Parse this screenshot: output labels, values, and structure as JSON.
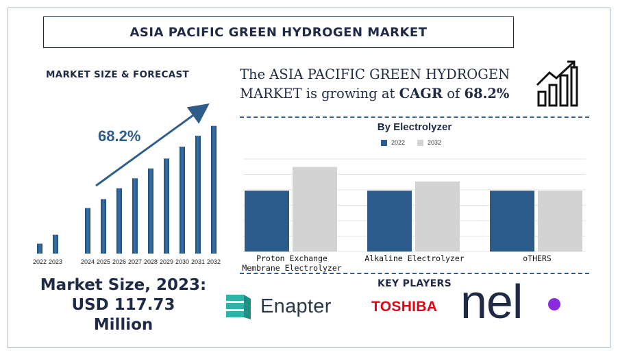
{
  "title": "ASIA PACIFIC GREEN HYDROGEN MARKET",
  "left_heading": "MARKET SIZE & FORECAST",
  "headline": {
    "part1": "The ASIA PACIFIC GREEN HYDROGEN MARKET is growing at ",
    "cagr_word": "CAGR",
    "part2": " of ",
    "cagr_value": "68.2%"
  },
  "cagr_label": "68.2%",
  "market_size": {
    "line1": "Market Size, 2023:",
    "line2": "USD 117.73",
    "line3": "Million"
  },
  "key_players_title": "KEY PLAYERS",
  "key_players": [
    "Enapter",
    "TOSHIBA",
    "nel"
  ],
  "colors": {
    "navy": "#1f2a44",
    "bar_blue": "#2b5b8a",
    "bar_gray": "#d3d3d3",
    "accent_blue": "#2e5d8a",
    "toshiba_red": "#e60012",
    "nel_purple": "#8a2be2"
  },
  "chart_data": [
    {
      "type": "bar",
      "title": "",
      "categories": [
        "2022",
        "2023",
        "2024",
        "2025",
        "2026",
        "2027",
        "2028",
        "2029",
        "2030",
        "2031",
        "2032"
      ],
      "values": [
        1.0,
        1.9,
        4.6,
        5.5,
        6.6,
        7.6,
        8.6,
        9.6,
        10.8,
        11.9,
        12.9
      ],
      "ylim": [
        0,
        13.5
      ],
      "grid": false,
      "annotation": "68.2%"
    },
    {
      "type": "bar",
      "title": "By Electrolyzer",
      "categories": [
        "Proton Exchange Membrane Electrolyzer",
        "Alkaline Electrolyzer",
        "oTHERS"
      ],
      "category_lines": [
        [
          "Proton Exchange",
          "Membrane Electrolyzer"
        ],
        [
          "Alkaline Electrolyzer"
        ],
        [
          "oTHERS"
        ]
      ],
      "series": [
        {
          "name": "2022",
          "values": [
            46,
            46,
            46
          ],
          "color": "#2b5b8a"
        },
        {
          "name": "2032",
          "values": [
            64,
            53,
            46
          ],
          "color": "#d3d3d3"
        }
      ],
      "ylim": [
        0,
        70
      ],
      "grid": true,
      "legend": "top"
    }
  ]
}
